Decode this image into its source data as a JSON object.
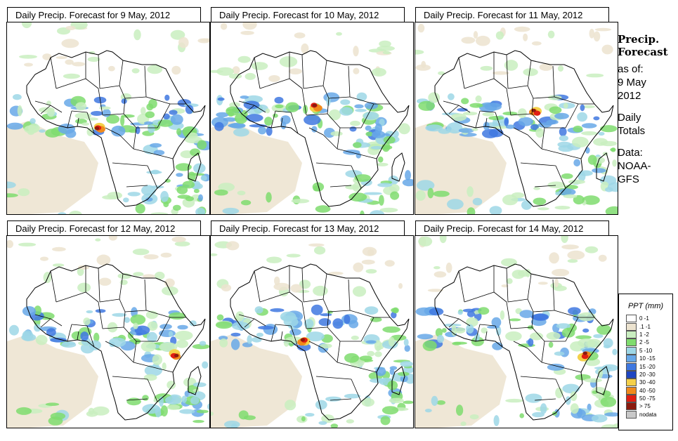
{
  "panels": [
    {
      "title": "Daily Precip. Forecast for  9 May, 2012",
      "seed": 11,
      "storm": "west"
    },
    {
      "title": "Daily Precip. Forecast for  10 May, 2012",
      "seed": 23,
      "storm": "north"
    },
    {
      "title": "Daily Precip. Forecast for  11 May, 2012",
      "seed": 37,
      "storm": "central"
    },
    {
      "title": "Daily Precip. Forecast for  12 May, 2012",
      "seed": 41,
      "storm": "east"
    },
    {
      "title": "Daily Precip. Forecast for  13 May, 2012",
      "seed": 53,
      "storm": "west"
    },
    {
      "title": "Daily Precip. Forecast for  14 May, 2012",
      "seed": 67,
      "storm": "east"
    }
  ],
  "side": {
    "title_line1": "Precip.",
    "title_line2": "Forecast",
    "asof": "as of:",
    "date_line1": "9 May",
    "date_line2": "2012",
    "daily_line1": "Daily",
    "daily_line2": "Totals",
    "data_line1": "Data:",
    "data_line2": "NOAA-",
    "data_line3": "GFS"
  },
  "legend": {
    "title": "PPT (mm)",
    "items": [
      {
        "label": "0 -1",
        "color": "#ffffff"
      },
      {
        "label": ".1 -1",
        "color": "#ece3cf"
      },
      {
        "label": "1 -2",
        "color": "#c9eec0"
      },
      {
        "label": "2 -5",
        "color": "#7fdc6e"
      },
      {
        "label": "5 -10",
        "color": "#9ed7e6"
      },
      {
        "label": "10 -15",
        "color": "#67a8e8"
      },
      {
        "label": "15 -20",
        "color": "#3f78e0"
      },
      {
        "label": "20 -30",
        "color": "#1f46c2"
      },
      {
        "label": "30 -40",
        "color": "#f4d04a"
      },
      {
        "label": "40 -50",
        "color": "#f08a1c"
      },
      {
        "label": "50 -75",
        "color": "#e01e12"
      },
      {
        "label": "> 75",
        "color": "#8a1a0e"
      },
      {
        "label": "nodata",
        "color": "#c8c8c8"
      }
    ]
  }
}
